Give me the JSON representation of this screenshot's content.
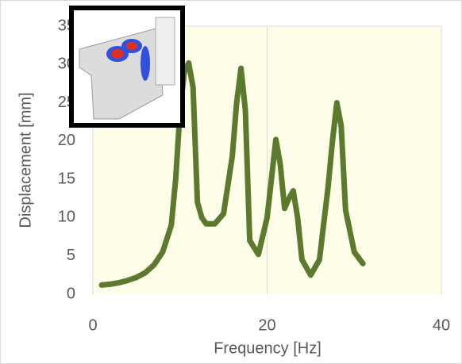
{
  "chart_data": {
    "type": "line",
    "x_label": "Frequency [Hz]",
    "y_label": "Displacement [mm]",
    "x": [
      1,
      2,
      3,
      4,
      5,
      6,
      7,
      8,
      9,
      9.5,
      10,
      10.5,
      11,
      11.5,
      12,
      12.5,
      13,
      14,
      15,
      16,
      16.5,
      17,
      17.5,
      18,
      19,
      20,
      21,
      21.5,
      22,
      22.5,
      23,
      23.5,
      24,
      25,
      26,
      27,
      27.5,
      28,
      28.5,
      29,
      30,
      31
    ],
    "series": [
      {
        "color": "#5b7a2e",
        "values": [
          1.2,
          1.3,
          1.5,
          1.8,
          2.2,
          2.8,
          3.8,
          5.5,
          9,
          15,
          24,
          29,
          30.2,
          27,
          12,
          10,
          9.2,
          9.2,
          10.5,
          18,
          25,
          29.5,
          24,
          7,
          5.2,
          10,
          20.2,
          17,
          11.2,
          12.5,
          13.5,
          10,
          4.5,
          2.5,
          4.5,
          14,
          20,
          25,
          22,
          11,
          5.5,
          4
        ]
      }
    ],
    "xlim": [
      0,
      40
    ],
    "xticks": [
      0,
      20,
      40
    ],
    "ylim": [
      0,
      35
    ],
    "yticks": [
      0,
      5,
      10,
      15,
      20,
      25,
      30,
      35
    ],
    "grid": "x",
    "plot_background": "#fdfde8"
  }
}
